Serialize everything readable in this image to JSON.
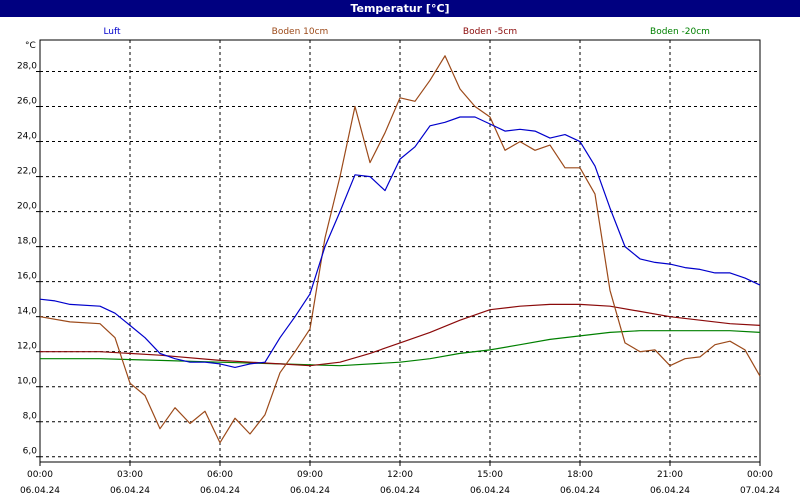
{
  "window": {
    "title": "Temperatur [°C]"
  },
  "chart_data": {
    "type": "line",
    "title": "Temperatur [°C]",
    "ylabel": "°C",
    "xlabel": "",
    "ylim": [
      5.7,
      29.8
    ],
    "xlim": [
      0,
      24
    ],
    "grid": true,
    "legend_placement": "top",
    "y_ticks": [
      "6,0",
      "8,0",
      "10,0",
      "12,0",
      "14,0",
      "16,0",
      "18,0",
      "20,0",
      "22,0",
      "24,0",
      "26,0",
      "28,0"
    ],
    "y_tick_values": [
      6,
      8,
      10,
      12,
      14,
      16,
      18,
      20,
      22,
      24,
      26,
      28
    ],
    "x_ticks": [
      {
        "time": "00:00",
        "date": "06.04.24"
      },
      {
        "time": "03:00",
        "date": "06.04.24"
      },
      {
        "time": "06:00",
        "date": "06.04.24"
      },
      {
        "time": "09:00",
        "date": "06.04.24"
      },
      {
        "time": "12:00",
        "date": "06.04.24"
      },
      {
        "time": "15:00",
        "date": "06.04.24"
      },
      {
        "time": "18:00",
        "date": "06.04.24"
      },
      {
        "time": "21:00",
        "date": "06.04.24"
      },
      {
        "time": "00:00",
        "date": "07.04.24"
      }
    ],
    "x_tick_values": [
      0,
      3,
      6,
      9,
      12,
      15,
      18,
      21,
      24
    ],
    "series": [
      {
        "name": "Luft",
        "color": "#0000cc",
        "x": [
          0,
          0.5,
          1,
          2,
          2.5,
          3,
          3.5,
          4,
          4.5,
          5,
          5.5,
          6,
          6.5,
          7,
          7.5,
          8,
          8.5,
          9,
          9.5,
          10,
          10.5,
          11,
          11.5,
          12,
          12.5,
          13,
          13.5,
          14,
          14.5,
          15,
          15.5,
          16,
          16.5,
          17,
          17.5,
          18,
          18.5,
          19,
          19.5,
          20,
          20.5,
          21,
          21.5,
          22,
          22.5,
          23,
          23.5,
          24
        ],
        "values": [
          15.0,
          14.9,
          14.7,
          14.6,
          14.2,
          13.5,
          12.8,
          11.9,
          11.6,
          11.4,
          11.4,
          11.3,
          11.1,
          11.3,
          11.4,
          12.8,
          14.0,
          15.3,
          18.0,
          20.0,
          22.1,
          22.0,
          21.2,
          23.0,
          23.7,
          24.9,
          25.1,
          25.4,
          25.4,
          25.0,
          24.6,
          24.7,
          24.6,
          24.2,
          24.4,
          24.0,
          22.6,
          20.2,
          18.0,
          17.3,
          17.1,
          17.0,
          16.8,
          16.7,
          16.5,
          16.5,
          16.2,
          15.8
        ]
      },
      {
        "name": "Boden 10cm",
        "color": "#9c4a1a",
        "x": [
          0,
          1,
          2,
          2.5,
          3,
          3.5,
          4,
          4.5,
          5,
          5.5,
          6,
          6.5,
          7,
          7.5,
          8,
          8.5,
          9,
          9.5,
          10,
          10.5,
          11,
          11.5,
          12,
          12.5,
          13,
          13.5,
          14,
          14.5,
          15,
          15.5,
          16,
          16.5,
          17,
          17.5,
          18,
          18.5,
          19,
          19.5,
          20,
          20.5,
          21,
          21.5,
          22,
          22.5,
          23,
          23.5,
          24
        ],
        "values": [
          14.0,
          13.7,
          13.6,
          12.8,
          10.2,
          9.5,
          7.6,
          8.8,
          7.9,
          8.6,
          6.8,
          8.2,
          7.3,
          8.4,
          10.8,
          12.0,
          13.3,
          18.5,
          22.0,
          26.0,
          22.8,
          24.5,
          26.5,
          26.3,
          27.5,
          28.9,
          27.0,
          26.0,
          25.4,
          23.5,
          24.0,
          23.5,
          23.8,
          22.5,
          22.5,
          21.0,
          15.5,
          12.5,
          12.0,
          12.1,
          11.2,
          11.6,
          11.7,
          12.4,
          12.6,
          12.1,
          10.6
        ]
      },
      {
        "name": "Boden -5cm",
        "color": "#8b0a0a",
        "x": [
          0,
          2,
          4,
          6,
          8,
          9,
          10,
          11,
          12,
          13,
          14,
          15,
          16,
          17,
          18,
          19,
          20,
          21,
          22,
          23,
          24
        ],
        "values": [
          12.0,
          12.0,
          11.8,
          11.5,
          11.3,
          11.2,
          11.4,
          11.9,
          12.5,
          13.1,
          13.8,
          14.4,
          14.6,
          14.7,
          14.7,
          14.6,
          14.3,
          14.0,
          13.8,
          13.6,
          13.5
        ]
      },
      {
        "name": "Boden -20cm",
        "color": "#008000",
        "x": [
          0,
          2,
          4,
          6,
          8,
          10,
          12,
          13,
          14,
          15,
          16,
          17,
          18,
          19,
          20,
          21,
          22,
          23,
          24
        ],
        "values": [
          11.6,
          11.6,
          11.5,
          11.4,
          11.3,
          11.2,
          11.4,
          11.6,
          11.9,
          12.1,
          12.4,
          12.7,
          12.9,
          13.1,
          13.2,
          13.2,
          13.2,
          13.2,
          13.1
        ]
      }
    ]
  }
}
